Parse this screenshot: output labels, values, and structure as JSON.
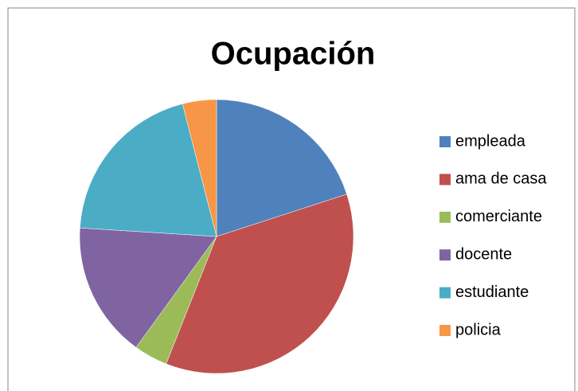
{
  "chart_data": {
    "type": "pie",
    "title": "Ocupación",
    "categories": [
      "empleada",
      "ama de casa",
      "comerciante",
      "docente",
      "estudiante",
      "policia"
    ],
    "values": [
      20,
      36,
      4,
      16,
      20,
      4
    ],
    "colors": [
      "#4F81BD",
      "#C0504D",
      "#9BBB59",
      "#8064A2",
      "#4BACC6",
      "#F79646"
    ],
    "legend": "right"
  }
}
